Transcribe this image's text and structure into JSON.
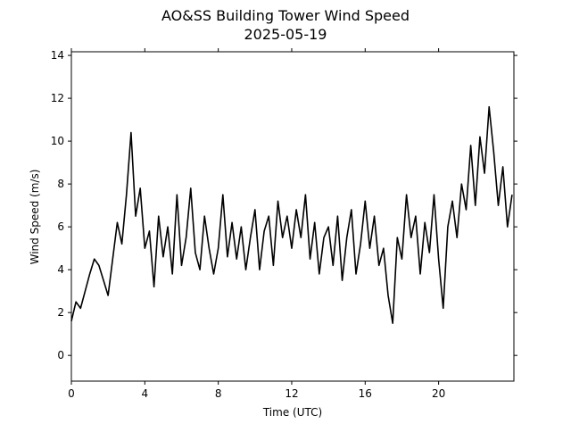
{
  "chart_data": {
    "type": "line",
    "title": "AO&SS Building Tower Wind Speed",
    "subtitle": "2025-05-19",
    "x_label": "Time (UTC)",
    "y_label": "Wind Speed (m/s)",
    "xlim": [
      0,
      24.1
    ],
    "xticks": [
      0,
      4,
      8,
      12,
      16,
      20
    ],
    "ylim": [
      -1.2,
      14.17
    ],
    "yticks": [
      0,
      2,
      4,
      6,
      8,
      10,
      12,
      14
    ],
    "grid": false,
    "series": [
      {
        "color": "#000000",
        "x": [
          0,
          0.25,
          0.5,
          0.75,
          1,
          1.25,
          1.5,
          1.75,
          2,
          2.25,
          2.5,
          2.75,
          3,
          3.25,
          3.5,
          3.75,
          4,
          4.25,
          4.5,
          4.75,
          5,
          5.25,
          5.5,
          5.75,
          6,
          6.25,
          6.5,
          6.75,
          7,
          7.25,
          7.5,
          7.75,
          8,
          8.25,
          8.5,
          8.75,
          9,
          9.25,
          9.5,
          9.75,
          10,
          10.25,
          10.5,
          10.75,
          11,
          11.25,
          11.5,
          11.75,
          12,
          12.25,
          12.5,
          12.75,
          13,
          13.25,
          13.5,
          13.75,
          14,
          14.25,
          14.5,
          14.75,
          15,
          15.25,
          15.5,
          15.75,
          16,
          16.25,
          16.5,
          16.75,
          17,
          17.25,
          17.5,
          17.75,
          18,
          18.25,
          18.5,
          18.75,
          19,
          19.25,
          19.5,
          19.75,
          20,
          20.25,
          20.5,
          20.75,
          21,
          21.25,
          21.5,
          21.75,
          22,
          22.25,
          22.5,
          22.75,
          23,
          23.25,
          23.5,
          23.75,
          24
        ],
        "values": [
          1.6,
          2.5,
          2.2,
          3.0,
          3.8,
          4.5,
          4.2,
          3.5,
          2.8,
          4.5,
          6.2,
          5.2,
          7.5,
          10.4,
          6.5,
          7.8,
          5.0,
          5.8,
          3.2,
          6.5,
          4.6,
          6.0,
          3.8,
          7.5,
          4.2,
          5.5,
          7.8,
          4.8,
          4.0,
          6.5,
          5.0,
          3.8,
          5.0,
          7.5,
          4.6,
          6.2,
          4.5,
          6.0,
          4.0,
          5.5,
          6.8,
          4.0,
          5.8,
          6.5,
          4.2,
          7.2,
          5.5,
          6.5,
          5.0,
          6.8,
          5.5,
          7.5,
          4.5,
          6.2,
          3.8,
          5.5,
          6.0,
          4.2,
          6.5,
          3.5,
          5.5,
          6.8,
          3.8,
          5.2,
          7.2,
          5.0,
          6.5,
          4.2,
          5.0,
          2.8,
          1.5,
          5.5,
          4.5,
          7.5,
          5.5,
          6.5,
          3.8,
          6.2,
          4.8,
          7.5,
          4.5,
          2.2,
          6.0,
          7.2,
          5.5,
          8.0,
          6.8,
          9.8,
          7.0,
          10.2,
          8.5,
          11.6,
          9.5,
          7.0,
          8.8,
          6.0,
          7.5
        ]
      }
    ]
  }
}
